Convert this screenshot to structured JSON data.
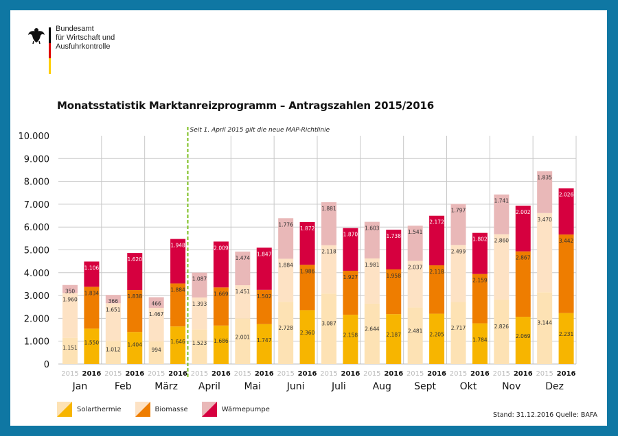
{
  "header": {
    "agency_lines": [
      "Bundesamt",
      "für Wirtschaft und",
      "Ausfuhrkontrolle"
    ],
    "flag_colors": [
      "#000000",
      "#dd0000",
      "#ffce00"
    ]
  },
  "footer": {
    "source": "Stand: 31.12.2016  Quelle: BAFA"
  },
  "chart_data": {
    "type": "bar",
    "stacked": true,
    "title": "Monatsstatistik Marktanreizprogramm – Antragszahlen 2015/2016",
    "annotation": "Seit 1. April 2015 gilt die neue MAP-Richtlinie",
    "annotation_after_category": "März",
    "xlabel": "",
    "ylabel": "",
    "ylim": [
      0,
      10000
    ],
    "yticks": [
      0,
      1000,
      2000,
      3000,
      4000,
      5000,
      6000,
      7000,
      8000,
      9000,
      10000
    ],
    "ytick_labels": [
      "0",
      "1.000",
      "2.000",
      "3.000",
      "4.000",
      "5.000",
      "6.000",
      "7.000",
      "8.000",
      "9.000",
      "10.000"
    ],
    "grid": true,
    "categories": [
      "Jan",
      "Feb",
      "März",
      "April",
      "Mai",
      "Juni",
      "Juli",
      "Aug",
      "Sept",
      "Okt",
      "Nov",
      "Dez"
    ],
    "years": [
      "2015",
      "2016"
    ],
    "series": [
      {
        "name": "Solarthermie",
        "color_2016": "#f7b500",
        "color_2015": "#fde2b4",
        "values_2015": [
          1151,
          1012,
          994,
          1523,
          2001,
          2728,
          3087,
          2644,
          2481,
          2717,
          2826,
          3144
        ],
        "values_2016": [
          1550,
          1404,
          1646,
          1686,
          1747,
          2360,
          2158,
          2187,
          2205,
          1784,
          2069,
          2231
        ]
      },
      {
        "name": "Biomasse",
        "color_2016": "#ee7d00",
        "color_2015": "#fde2c4",
        "values_2015": [
          1960,
          1651,
          1467,
          1393,
          1451,
          1884,
          2118,
          1981,
          2037,
          2499,
          2860,
          3470
        ],
        "values_2016": [
          1834,
          1838,
          1884,
          1669,
          1502,
          1986,
          1927,
          1958,
          2118,
          2159,
          2867,
          3442
        ]
      },
      {
        "name": "Wärmepumpe",
        "color_2016": "#d6003f",
        "color_2015": "#e9b8b8",
        "values_2015": [
          350,
          366,
          466,
          1087,
          1474,
          1776,
          1881,
          1603,
          1541,
          1797,
          1741,
          1835
        ],
        "values_2016": [
          1106,
          1620,
          1948,
          2009,
          1847,
          1872,
          1870,
          1738,
          2172,
          1802,
          2002,
          2026
        ]
      }
    ],
    "legend": [
      "Solarthermie",
      "Biomasse",
      "Wärmepumpe"
    ],
    "legend_position": "bottom-left"
  }
}
